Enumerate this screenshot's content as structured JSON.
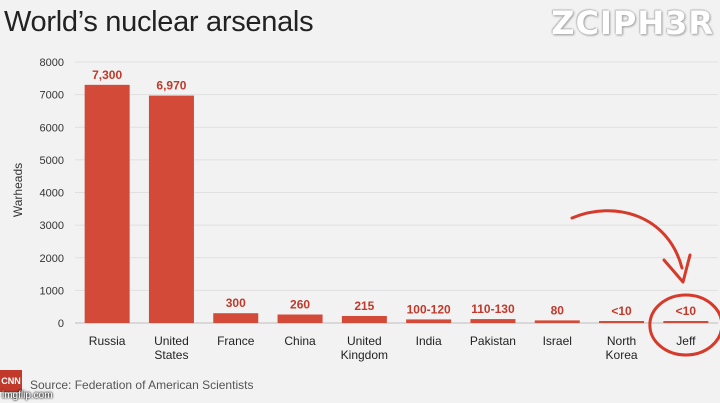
{
  "watermark": "ZCIPH3R",
  "footer": {
    "logo": "CNN",
    "source": "Source: Federation of American Scientists",
    "site": "imgflip.com"
  },
  "colors": {
    "bar": "#d44a38",
    "label": "#c0392b",
    "annotation": "#d63a2a"
  },
  "chart_data": {
    "type": "bar",
    "title": "World’s nuclear arsenals",
    "ylabel": "Warheads",
    "xlabel": "",
    "ylim": [
      0,
      8000
    ],
    "yticks": [
      0,
      1000,
      2000,
      3000,
      4000,
      5000,
      6000,
      7000,
      8000
    ],
    "ytick_labels": [
      "0",
      "1000",
      "2000",
      "3000",
      "4000",
      "5000",
      "6000",
      "7000",
      "8000"
    ],
    "grid": true,
    "categories": [
      [
        "Russia"
      ],
      [
        "United",
        "States"
      ],
      [
        "France"
      ],
      [
        "China"
      ],
      [
        "United",
        "Kingdom"
      ],
      [
        "India"
      ],
      [
        "Pakistan"
      ],
      [
        "Israel"
      ],
      [
        "North",
        "Korea"
      ],
      [
        "Jeff"
      ]
    ],
    "values": [
      7300,
      6970,
      300,
      260,
      215,
      110,
      120,
      80,
      10,
      10
    ],
    "data_labels": [
      "7,300",
      "6,970",
      "300",
      "260",
      "215",
      "100-120",
      "110-130",
      "80",
      "<10",
      "<10"
    ],
    "annotations": [
      {
        "type": "circled-arrow",
        "target": "Jeff"
      }
    ]
  }
}
